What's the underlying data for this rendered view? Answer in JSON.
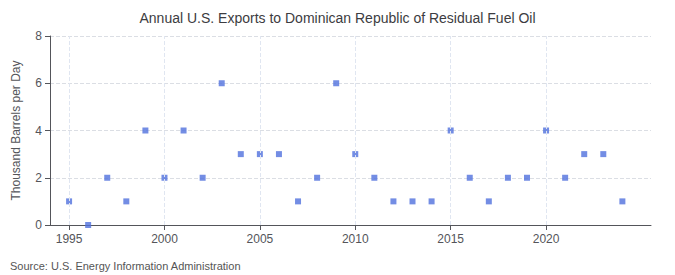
{
  "chart_data": {
    "type": "scatter",
    "title": "Annual U.S. Exports to Dominican Republic of Residual Fuel Oil",
    "ylabel": "Thousand Barrels per Day",
    "annotations": [
      "Source: U.S. Energy Information Administration"
    ],
    "x": [
      1995,
      1996,
      1997,
      1998,
      1999,
      2000,
      2001,
      2002,
      2003,
      2004,
      2005,
      2006,
      2007,
      2008,
      2009,
      2010,
      2011,
      2012,
      2013,
      2014,
      2015,
      2016,
      2017,
      2018,
      2019,
      2020,
      2021,
      2022,
      2023,
      2024
    ],
    "values": [
      1,
      0,
      2,
      1,
      4,
      2,
      4,
      2,
      6,
      3,
      3,
      3,
      1,
      2,
      6,
      3,
      2,
      1,
      1,
      1,
      4,
      2,
      1,
      2,
      2,
      4,
      2,
      3,
      3,
      1
    ],
    "marker": "square",
    "xlim": [
      1994.0,
      2025.5
    ],
    "xticks": [
      1995,
      2000,
      2005,
      2010,
      2015,
      2020
    ],
    "ylim": [
      0,
      8
    ],
    "yticks": [
      0,
      2,
      4,
      6,
      8
    ],
    "grid": true
  }
}
